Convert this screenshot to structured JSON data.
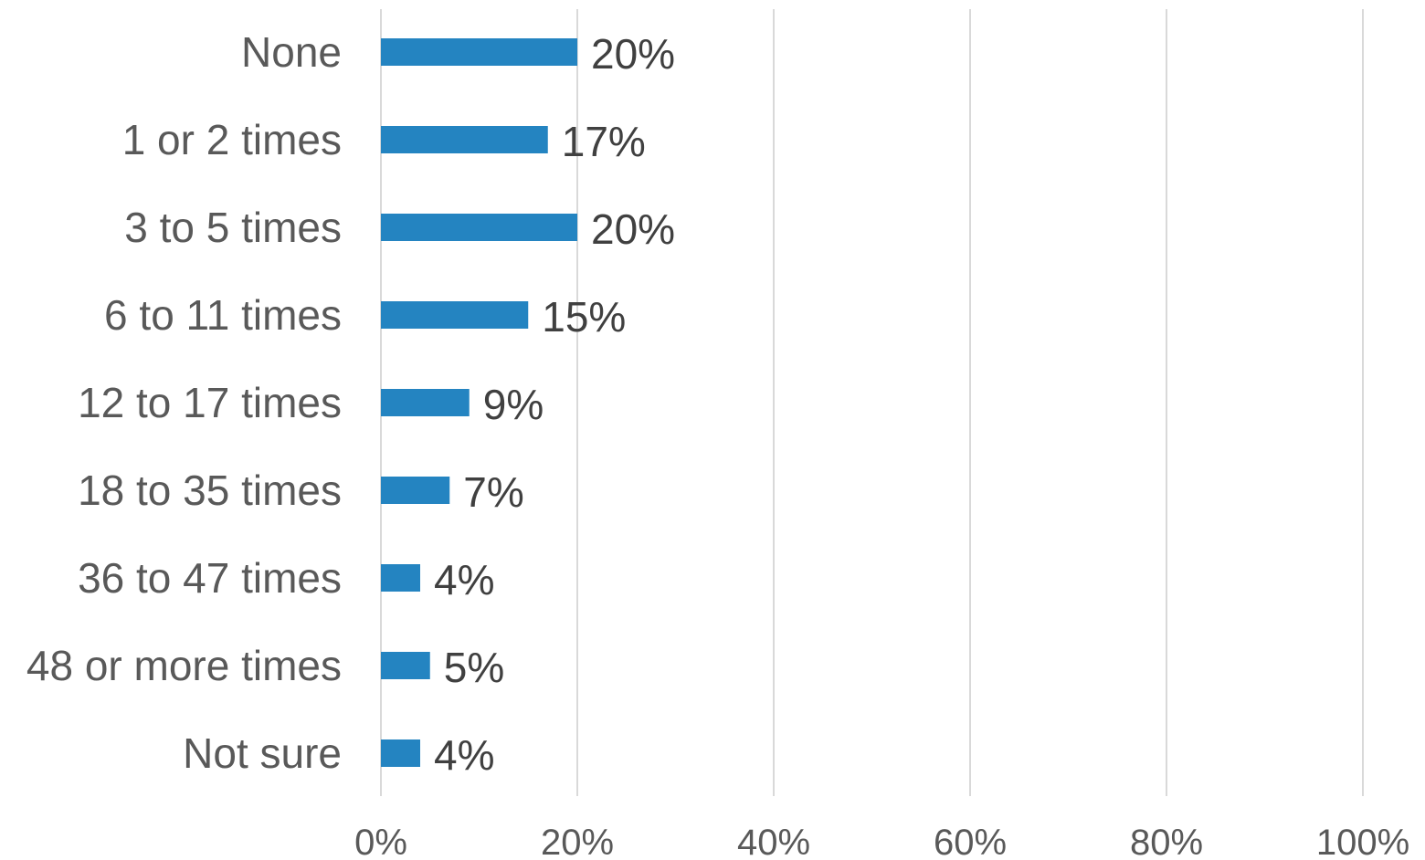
{
  "chart_data": {
    "type": "bar",
    "orientation": "horizontal",
    "title": "",
    "xlabel": "",
    "ylabel": "",
    "categories": [
      "None",
      "1 or 2 times",
      "3 to 5 times",
      "6 to 11 times",
      "12 to 17 times",
      "18 to 35 times",
      "36 to 47 times",
      "48 or more times",
      "Not sure"
    ],
    "values": [
      20,
      17,
      20,
      15,
      9,
      7,
      4,
      5,
      4
    ],
    "value_labels": [
      "20%",
      "17%",
      "20%",
      "15%",
      "9%",
      "7%",
      "4%",
      "5%",
      "4%"
    ],
    "xlim": [
      0,
      100
    ],
    "x_ticks": [
      0,
      20,
      40,
      60,
      80,
      100
    ],
    "x_tick_labels": [
      "0%",
      "20%",
      "40%",
      "60%",
      "80%",
      "100%"
    ],
    "grid": "vertical",
    "legend": "none",
    "bar_color": "#2484c1"
  }
}
